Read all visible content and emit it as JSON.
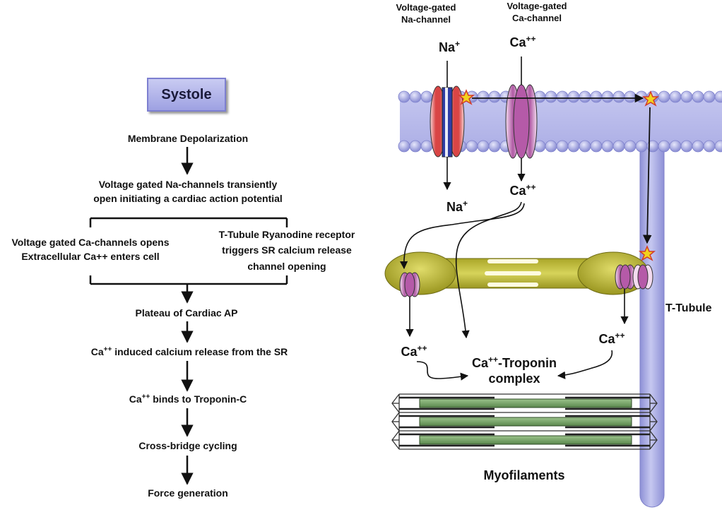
{
  "left_flow": {
    "systole": "Systole",
    "step1": "Membrane Depolarization",
    "step2_line1": "Voltage gated Na-channels transiently",
    "step2_line2": "open initiating a cardiac action potential",
    "branch_left_line1": "Voltage gated Ca-channels opens",
    "branch_left_line2": "Extracellular Ca++ enters cell",
    "branch_right_line1": "T-Tubule Ryanodine receptor",
    "branch_right_line2": "triggers SR calcium release",
    "branch_right_line3": "channel opening",
    "step4": "Plateau of Cardiac AP",
    "step5_pre": "Ca",
    "step5_sup": "++",
    "step5_post": " induced calcium release from the SR",
    "step6_pre": "Ca",
    "step6_sup": "++",
    "step6_post": " binds to Troponin-C",
    "step7": "Cross-bridge cycling",
    "step8": "Force generation"
  },
  "right_diagram": {
    "na_channel_line1": "Voltage-gated",
    "na_channel_line2": "Na-channel",
    "ca_channel_line1": "Voltage-gated",
    "ca_channel_line2": "Ca-channel",
    "ion_na": "Na",
    "ion_na_sup": "+",
    "ion_ca": "Ca",
    "ion_ca_sup": "++",
    "troponin_line1_pre": "Ca",
    "troponin_line1_sup": "++",
    "troponin_line1_post": "-Troponin",
    "troponin_line2": "complex",
    "t_tubule": "T-Tubule",
    "myofilaments": "Myofilaments"
  },
  "colors": {
    "membrane": "#b5b7ea",
    "membrane_dark": "#8e91d8",
    "ttubule": "#a9abe3",
    "na_channel_red": "#e04848",
    "na_channel_blue": "#2a3aa8",
    "ca_channel": "#b55aa8",
    "sr": "#a8a52a",
    "myofilament": "#5f8c52",
    "star": "#f0d020"
  }
}
